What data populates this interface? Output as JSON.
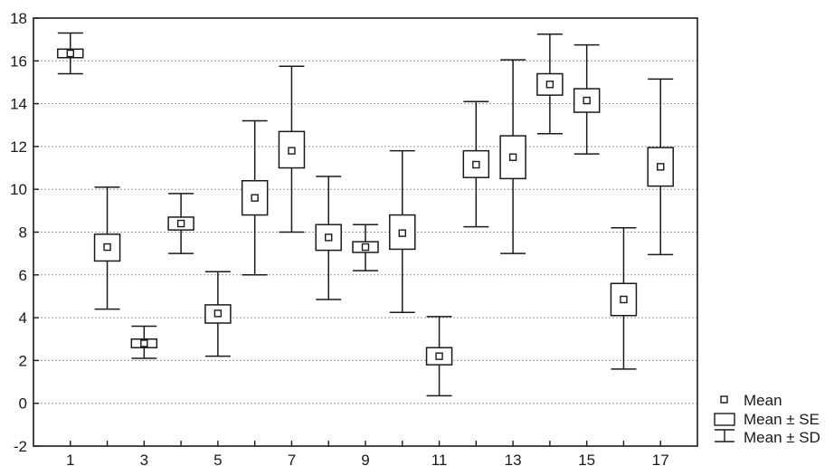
{
  "chart_data": {
    "type": "box",
    "categories": [
      "1",
      "2",
      "3",
      "4",
      "5",
      "6",
      "7",
      "8",
      "9",
      "10",
      "11",
      "12",
      "13",
      "14",
      "15",
      "16",
      "17"
    ],
    "x_tick_labels": [
      "1",
      "3",
      "5",
      "7",
      "9",
      "11",
      "13",
      "15",
      "17"
    ],
    "y_tick_labels": [
      "-2",
      "0",
      "2",
      "4",
      "6",
      "8",
      "10",
      "12",
      "14",
      "16",
      "18"
    ],
    "ylim": [
      -2,
      18
    ],
    "xlim": [
      0,
      18
    ],
    "grid": "horizontal dashed",
    "legend_position": "right-bottom",
    "series": [
      {
        "name": "Mean",
        "values": [
          16.35,
          7.3,
          2.8,
          8.4,
          4.2,
          9.6,
          11.8,
          7.75,
          7.3,
          7.95,
          2.2,
          11.15,
          11.5,
          14.9,
          14.15,
          4.85,
          11.05
        ]
      },
      {
        "name": "Mean ± SE",
        "low": [
          16.15,
          6.65,
          2.6,
          8.1,
          3.75,
          8.8,
          11.0,
          7.15,
          7.05,
          7.2,
          1.8,
          10.55,
          10.5,
          14.4,
          13.6,
          4.1,
          10.15
        ],
        "high": [
          16.55,
          7.9,
          3.0,
          8.7,
          4.6,
          10.4,
          12.7,
          8.35,
          7.55,
          8.8,
          2.6,
          11.8,
          12.5,
          15.4,
          14.7,
          5.6,
          11.95
        ]
      },
      {
        "name": "Mean ± SD",
        "low": [
          15.4,
          4.4,
          2.1,
          7.0,
          2.2,
          6.0,
          8.0,
          4.85,
          6.2,
          4.25,
          0.35,
          8.25,
          7.0,
          12.6,
          11.65,
          1.6,
          6.95
        ],
        "high": [
          17.3,
          10.1,
          3.6,
          9.8,
          6.15,
          13.2,
          15.75,
          10.6,
          8.35,
          11.8,
          4.05,
          14.1,
          16.05,
          17.25,
          16.75,
          8.2,
          15.15
        ]
      }
    ]
  },
  "legend": {
    "mean_label": "Mean",
    "se_label": "Mean ± SE",
    "sd_label": "Mean ± SD"
  }
}
